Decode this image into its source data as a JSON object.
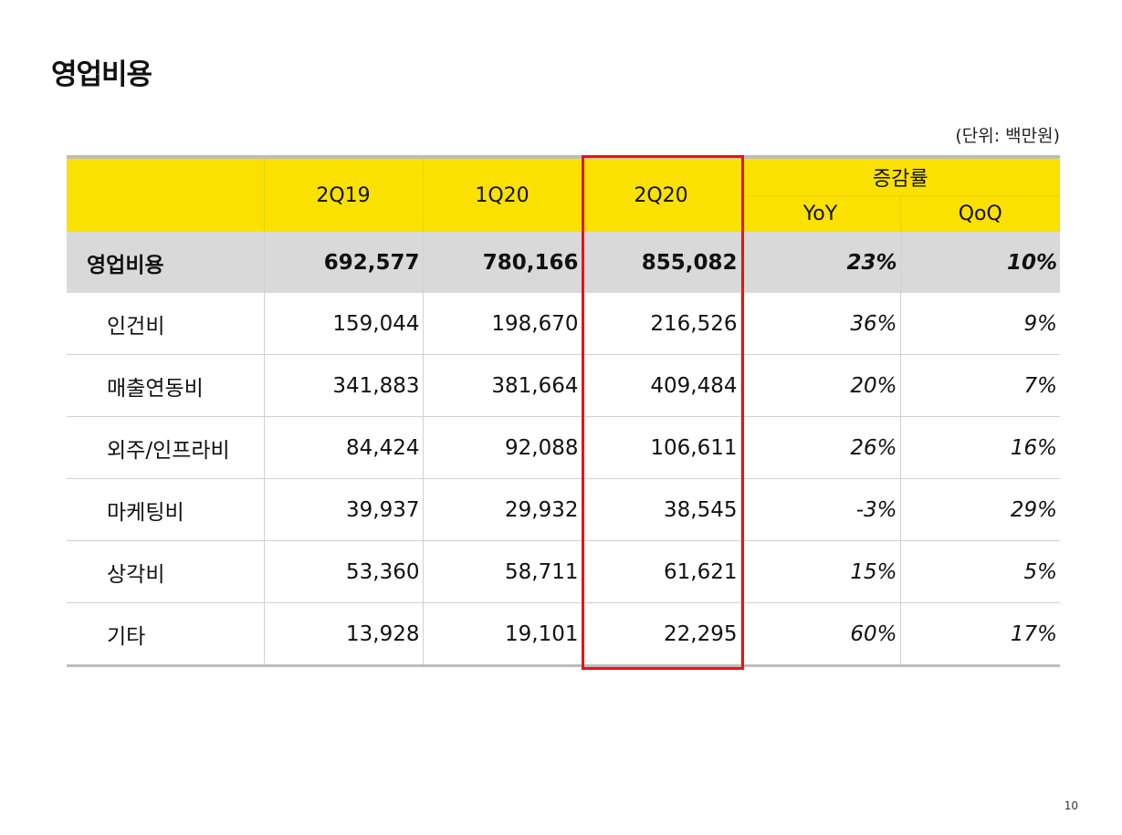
{
  "title": "영업비용",
  "unit_note": "(단위: 백만원)",
  "page_number": "10",
  "columns": {
    "q1": "2Q19",
    "q2": "1Q20",
    "q3": "2Q20",
    "change_group": "증감률",
    "yoy": "YoY",
    "qoq": "QoQ"
  },
  "rows": [
    {
      "label": "영업비용",
      "v1": "692,577",
      "v2": "780,166",
      "v3": "855,082",
      "yoy": "23%",
      "qoq": "10%"
    },
    {
      "label": "인건비",
      "v1": "159,044",
      "v2": "198,670",
      "v3": "216,526",
      "yoy": "36%",
      "qoq": "9%"
    },
    {
      "label": "매출연동비",
      "v1": "341,883",
      "v2": "381,664",
      "v3": "409,484",
      "yoy": "20%",
      "qoq": "7%"
    },
    {
      "label": "외주/인프라비",
      "v1": "84,424",
      "v2": "92,088",
      "v3": "106,611",
      "yoy": "26%",
      "qoq": "16%"
    },
    {
      "label": "마케팅비",
      "v1": "39,937",
      "v2": "29,932",
      "v3": "38,545",
      "yoy": "-3%",
      "qoq": "29%"
    },
    {
      "label": "상각비",
      "v1": "53,360",
      "v2": "58,711",
      "v3": "61,621",
      "yoy": "15%",
      "qoq": "5%"
    },
    {
      "label": "기타",
      "v1": "13,928",
      "v2": "19,101",
      "v3": "22,295",
      "yoy": "60%",
      "qoq": "17%"
    }
  ],
  "colors": {
    "header_bg": "#fae100",
    "total_row_bg": "#d9d9d9",
    "highlight_border": "#ee1111"
  }
}
